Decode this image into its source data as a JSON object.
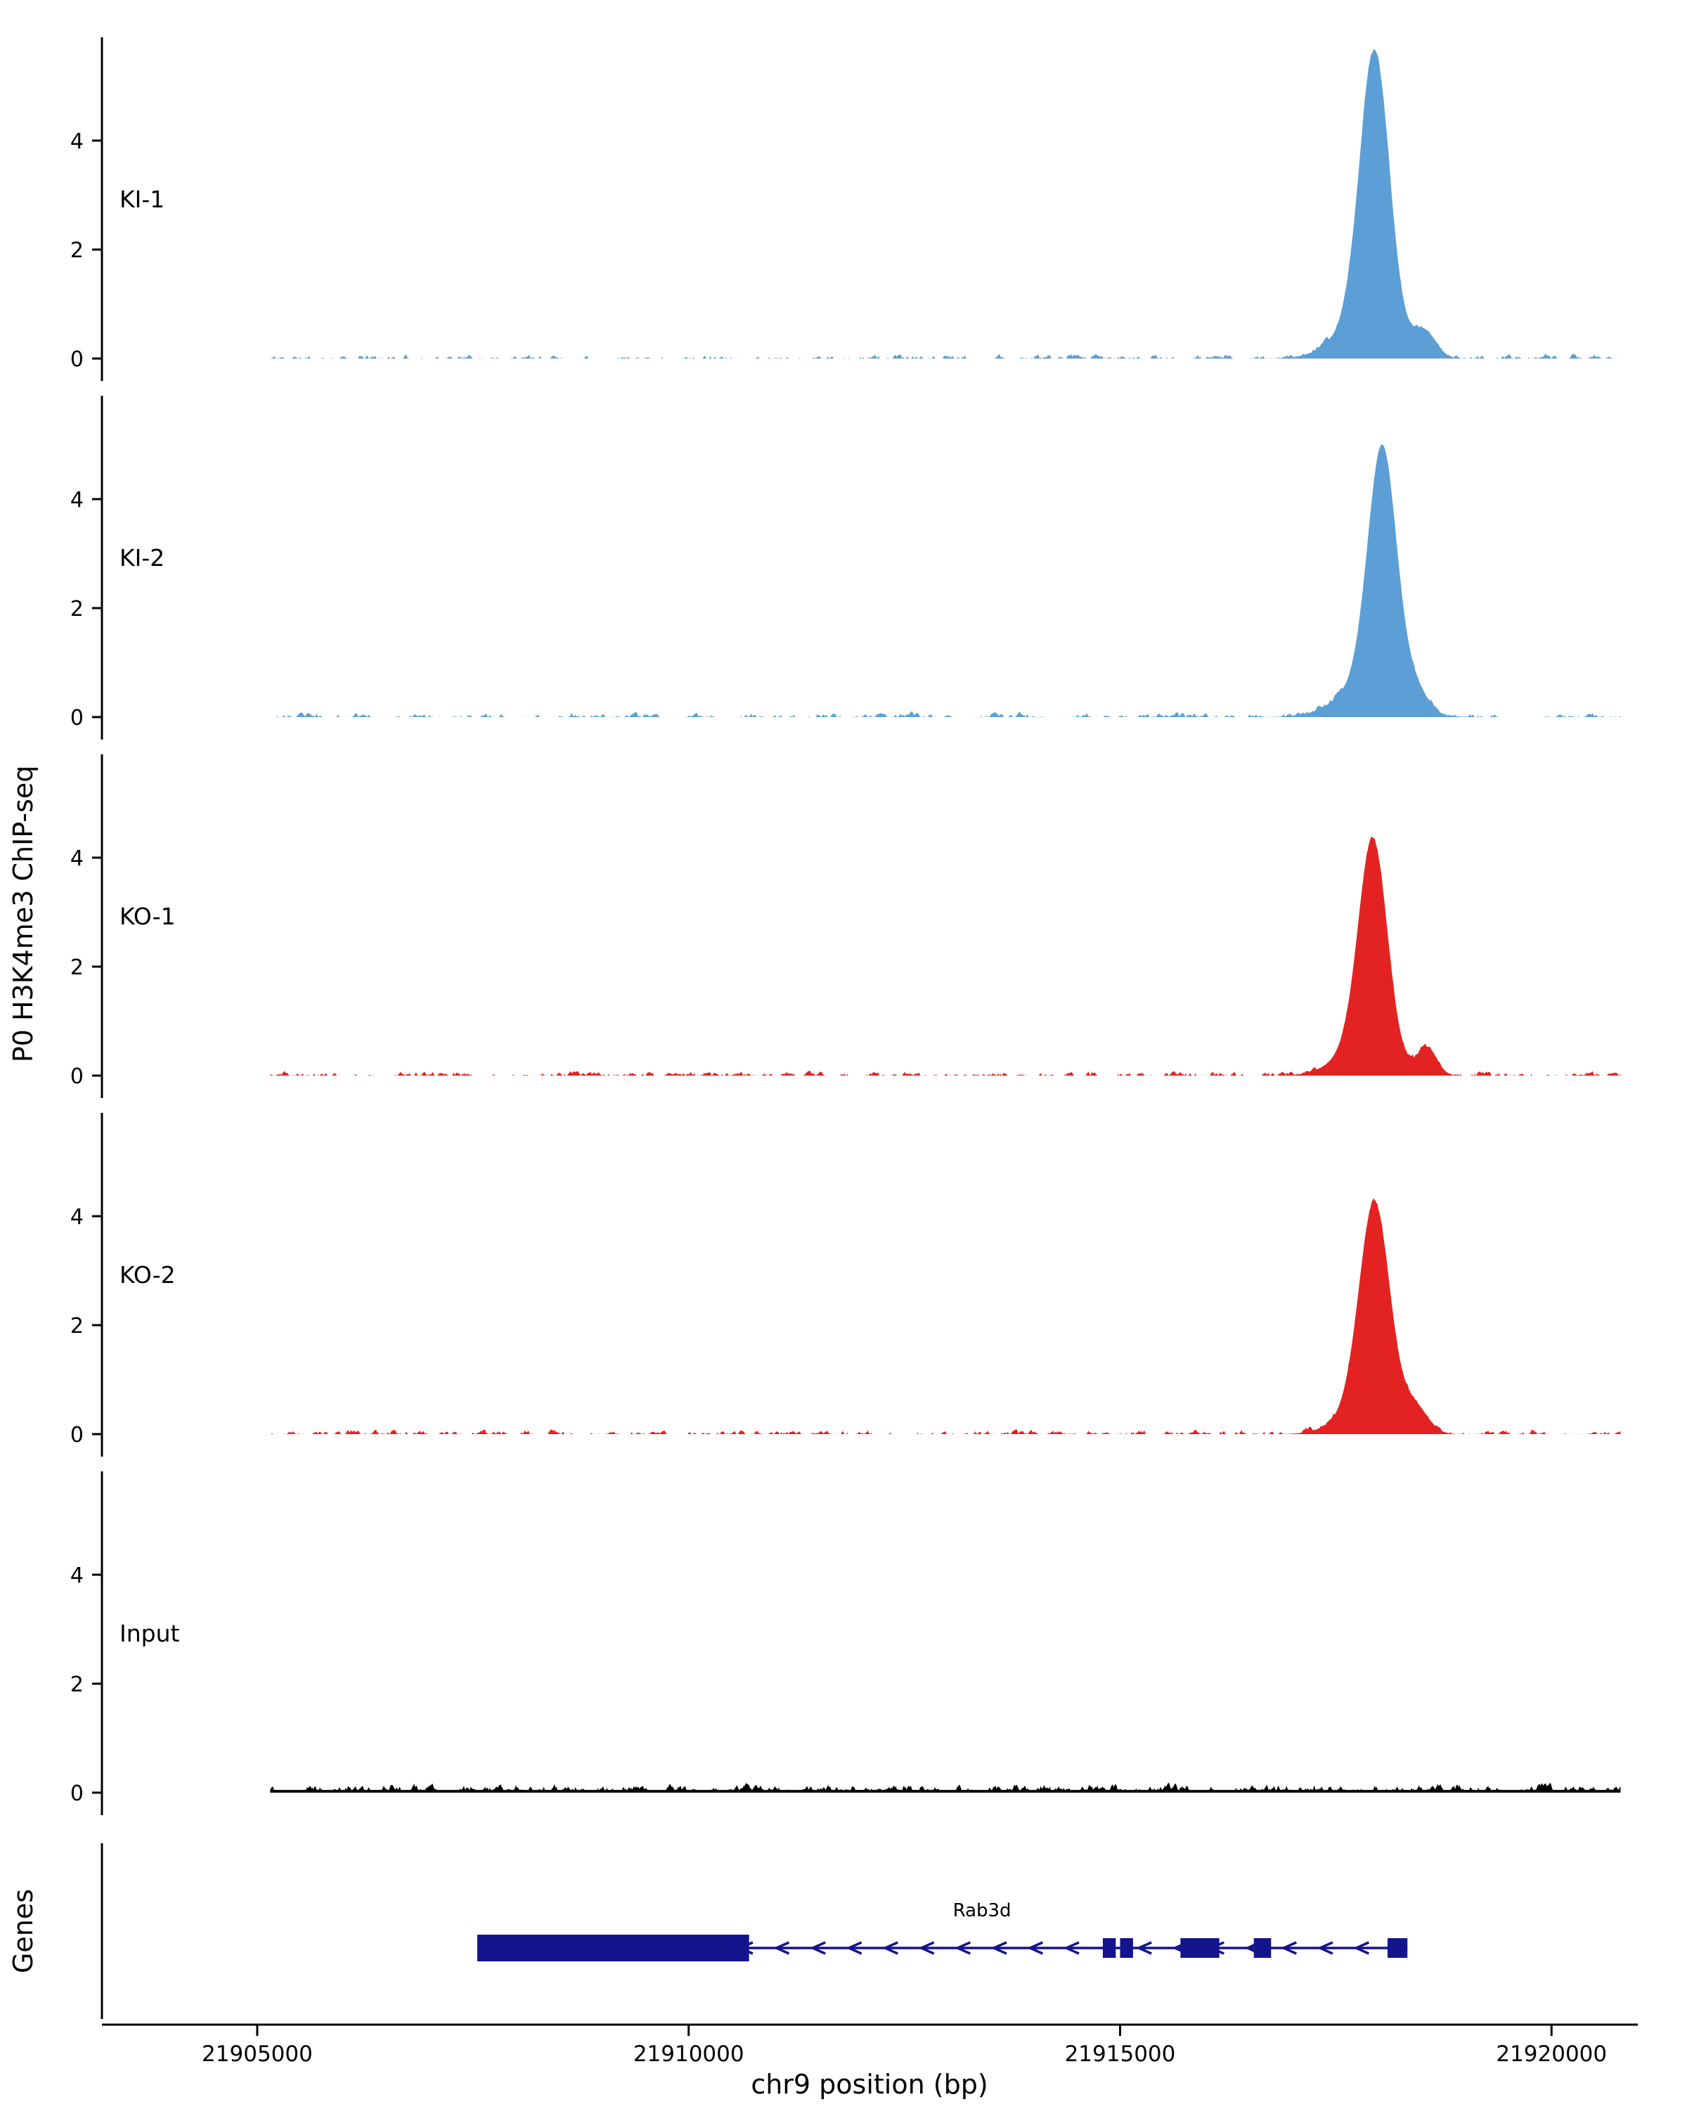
{
  "figure": {
    "y_axis_title": "P0 H3K4me3 ChIP-seq",
    "genes_title": "Genes",
    "x_axis_title": "chr9 position (bp)"
  },
  "chart_data": {
    "type": "area",
    "title": "",
    "xlabel": "chr9 position (bp)",
    "ylabel": "P0 H3K4me3 ChIP-seq",
    "x_axis": {
      "min": 21903200,
      "max": 21921000,
      "ticks": [
        21905000,
        21910000,
        21915000,
        21920000
      ],
      "tick_labels": [
        "21905000",
        "21910000",
        "21915000",
        "21920000"
      ]
    },
    "y_axis": {
      "ticks": [
        0,
        2,
        4
      ],
      "tick_labels": [
        "0",
        "2",
        "4"
      ],
      "max_units": 5.85
    },
    "tracks": [
      {
        "name": "KI-1",
        "color": "#5B9FD6",
        "peak_summit_bp": 21917950,
        "peak_max_value": 5.6,
        "peaks": [
          {
            "center": 21917950,
            "height": 5.0,
            "sigma": 170
          },
          {
            "center": 21917850,
            "height": 0.7,
            "sigma": 330
          },
          {
            "center": 21918530,
            "height": 0.45,
            "sigma": 130
          }
        ],
        "noise_amp": 0.12,
        "noise_gain": 0.6,
        "noise_base": 0,
        "noise_seed": 11
      },
      {
        "name": "KI-2",
        "color": "#5B9FD6",
        "peak_summit_bp": 21918040,
        "peak_max_value": 5.0,
        "peaks": [
          {
            "center": 21918040,
            "height": 4.4,
            "sigma": 165
          },
          {
            "center": 21917900,
            "height": 0.65,
            "sigma": 340
          },
          {
            "center": 21918430,
            "height": 0.35,
            "sigma": 140
          }
        ],
        "noise_amp": 0.12,
        "noise_gain": 0.6,
        "noise_base": 0,
        "noise_seed": 23
      },
      {
        "name": "KO-1",
        "color": "#E32322",
        "peak_summit_bp": 21917930,
        "peak_max_value": 4.4,
        "peaks": [
          {
            "center": 21917930,
            "height": 3.85,
            "sigma": 165
          },
          {
            "center": 21917820,
            "height": 0.55,
            "sigma": 300
          },
          {
            "center": 21918560,
            "height": 0.5,
            "sigma": 110
          }
        ],
        "noise_amp": 0.12,
        "noise_gain": 0.6,
        "noise_base": 0,
        "noise_seed": 37
      },
      {
        "name": "KO-2",
        "color": "#E32322",
        "peak_summit_bp": 21917950,
        "peak_max_value": 4.3,
        "peaks": [
          {
            "center": 21917950,
            "height": 3.8,
            "sigma": 175
          },
          {
            "center": 21917850,
            "height": 0.5,
            "sigma": 300
          },
          {
            "center": 21918420,
            "height": 0.45,
            "sigma": 150
          }
        ],
        "noise_amp": 0.12,
        "noise_gain": 0.6,
        "noise_base": 0,
        "noise_seed": 49
      },
      {
        "name": "Input",
        "color": "#000000",
        "peak_summit_bp": null,
        "peak_max_value": 0.15,
        "peaks": [],
        "noise_amp": 0.12,
        "noise_gain": 0.9,
        "noise_base": 0.05,
        "noise_seed": 55
      }
    ],
    "genes": {
      "axis_label": "Genes",
      "features": [
        {
          "name": "Rab3d",
          "chrom": "chr9",
          "strand": "-",
          "tx_start": 21907550,
          "tx_end": 21918330,
          "utr_box": {
            "start": 21907550,
            "end": 21910700
          },
          "exons": [
            [
              21914800,
              21914950
            ],
            [
              21915000,
              21915150
            ],
            [
              21915700,
              21916150
            ],
            [
              21916550,
              21916750
            ],
            [
              21918100,
              21918330
            ]
          ],
          "color": "#14148C",
          "label_pos_bp": 21913400
        }
      ]
    }
  }
}
